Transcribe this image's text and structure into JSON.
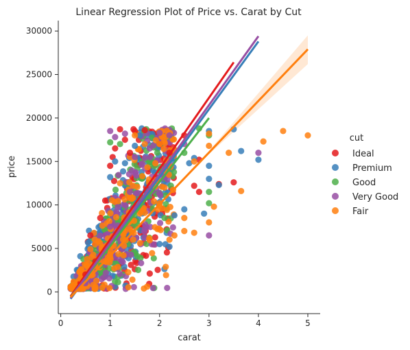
{
  "chart_data": {
    "type": "scatter",
    "title": "Linear Regression Plot of Price vs. Carat by Cut",
    "xlabel": "carat",
    "ylabel": "price",
    "xlim": [
      -0.05,
      5.25
    ],
    "ylim": [
      -2500,
      31200
    ],
    "xticks": [
      0,
      1,
      2,
      3,
      4,
      5
    ],
    "yticks": [
      0,
      5000,
      10000,
      15000,
      20000,
      25000,
      30000
    ],
    "legend": {
      "title": "cut",
      "placement": "right, outside plot"
    },
    "grid": false,
    "series": [
      {
        "name": "Ideal",
        "color": "#e41a1c",
        "points": [
          [
            0.6,
            6500
          ],
          [
            0.8,
            8500
          ],
          [
            0.9,
            10500
          ],
          [
            1.0,
            14500
          ],
          [
            1.05,
            15500
          ],
          [
            1.1,
            16500
          ],
          [
            1.2,
            18700
          ],
          [
            1.3,
            17500
          ],
          [
            1.4,
            16000
          ],
          [
            1.5,
            18500
          ],
          [
            1.7,
            18600
          ],
          [
            2.0,
            17000
          ],
          [
            2.2,
            16000
          ],
          [
            2.5,
            18000
          ],
          [
            2.8,
            15200
          ],
          [
            2.7,
            12200
          ],
          [
            2.8,
            11500
          ],
          [
            3.2,
            12400
          ],
          [
            3.5,
            12600
          ],
          [
            0.4,
            1000
          ],
          [
            0.5,
            2000
          ],
          [
            0.7,
            3500
          ]
        ],
        "regression": {
          "x": [
            0.2,
            3.5
          ],
          "y": [
            -500,
            26400
          ]
        }
      },
      {
        "name": "Premium",
        "color": "#377eb8",
        "points": [
          [
            1.0,
            13200
          ],
          [
            1.1,
            15000
          ],
          [
            1.3,
            14800
          ],
          [
            1.5,
            16800
          ],
          [
            1.6,
            18000
          ],
          [
            2.0,
            5500
          ],
          [
            2.2,
            5200
          ],
          [
            2.5,
            9500
          ],
          [
            2.6,
            14800
          ],
          [
            2.7,
            15400
          ],
          [
            3.0,
            14500
          ],
          [
            3.0,
            13000
          ],
          [
            3.0,
            18500
          ],
          [
            3.2,
            12300
          ],
          [
            3.5,
            18700
          ],
          [
            3.65,
            16200
          ],
          [
            4.0,
            15200
          ],
          [
            2.9,
            9000
          ],
          [
            2.3,
            8800
          ],
          [
            0.5,
            1200
          ]
        ],
        "regression": {
          "x": [
            0.2,
            4.0
          ],
          "y": [
            -800,
            28800
          ]
        }
      },
      {
        "name": "Good",
        "color": "#4daf4a",
        "points": [
          [
            1.0,
            17200
          ],
          [
            1.2,
            17000
          ],
          [
            2.0,
            14000
          ],
          [
            2.1,
            8500
          ],
          [
            2.5,
            16000
          ],
          [
            2.8,
            18800
          ],
          [
            3.0,
            11500
          ],
          [
            3.0,
            10200
          ],
          [
            3.0,
            18000
          ],
          [
            0.5,
            1500
          ],
          [
            0.8,
            3000
          ]
        ],
        "regression": {
          "x": [
            0.2,
            3.0
          ],
          "y": [
            -600,
            20000
          ]
        }
      },
      {
        "name": "Very Good",
        "color": "#984ea3",
        "points": [
          [
            1.0,
            18500
          ],
          [
            1.1,
            17800
          ],
          [
            1.3,
            18200
          ],
          [
            1.5,
            15500
          ],
          [
            1.8,
            16500
          ],
          [
            2.0,
            18300
          ],
          [
            2.2,
            18000
          ],
          [
            2.5,
            17000
          ],
          [
            3.0,
            6500
          ],
          [
            4.0,
            16000
          ],
          [
            1.0,
            7500
          ],
          [
            1.4,
            11500
          ],
          [
            0.5,
            1000
          ]
        ],
        "regression": {
          "x": [
            0.2,
            4.0
          ],
          "y": [
            -700,
            29400
          ]
        }
      },
      {
        "name": "Fair",
        "color": "#ff7f0e",
        "points": [
          [
            1.2,
            12500
          ],
          [
            1.5,
            18000
          ],
          [
            1.7,
            17000
          ],
          [
            2.0,
            10200
          ],
          [
            2.1,
            12000
          ],
          [
            2.3,
            6500
          ],
          [
            2.5,
            7000
          ],
          [
            2.5,
            8500
          ],
          [
            2.7,
            6800
          ],
          [
            2.7,
            15000
          ],
          [
            3.0,
            18200
          ],
          [
            3.0,
            16800
          ],
          [
            3.0,
            8000
          ],
          [
            3.1,
            9800
          ],
          [
            3.4,
            16000
          ],
          [
            3.65,
            11600
          ],
          [
            4.1,
            17300
          ],
          [
            4.5,
            18500
          ],
          [
            5.0,
            18000
          ],
          [
            2.0,
            17000
          ],
          [
            1.0,
            4000
          ],
          [
            0.4,
            1500
          ],
          [
            0.7,
            3000
          ],
          [
            0.9,
            5000
          ],
          [
            1.3,
            7000
          ],
          [
            1.6,
            9000
          ],
          [
            2.2,
            6000
          ],
          [
            0.3,
            400
          ]
        ],
        "regression": {
          "x": [
            0.2,
            5.0
          ],
          "y": [
            -600,
            27900
          ]
        },
        "ci_band": {
          "x_start": 3.0,
          "x_end": 5.0,
          "lower_end": 26200,
          "upper_end": 29500
        }
      }
    ]
  }
}
